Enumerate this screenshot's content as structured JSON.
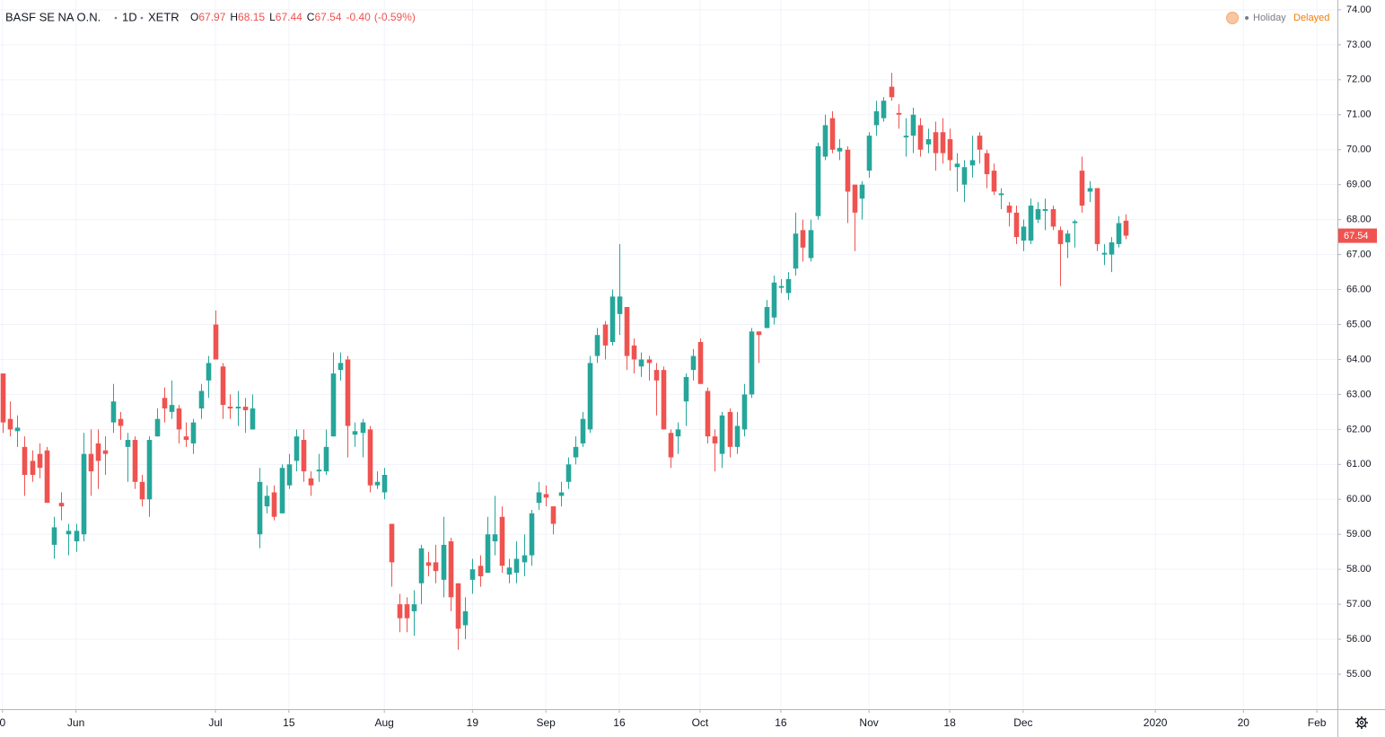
{
  "chart_data": {
    "type": "candlestick",
    "legend": {
      "symbol": "BASF SE NA O.N.",
      "interval": "1D",
      "exchange": "XETR",
      "ohlc": [
        {
          "key": "O",
          "value": "67.97"
        },
        {
          "key": "H",
          "value": "68.15"
        },
        {
          "key": "L",
          "value": "67.44"
        },
        {
          "key": "C",
          "value": "67.54"
        }
      ],
      "change": "-0.40",
      "change_pct": "(-0.59%)"
    },
    "status": {
      "holiday": "Holiday",
      "delayed": "Delayed"
    },
    "up_color": "#26a69a",
    "down_color": "#ef5350",
    "grid": true,
    "candles": {
      "open": [
        63.6,
        62.3,
        61.95,
        61.5,
        61.1,
        61.3,
        61.4,
        58.7,
        59.9,
        59.0,
        58.8,
        59.0,
        61.3,
        61.6,
        61.4,
        62.2,
        62.3,
        61.5,
        61.7,
        60.5,
        60.0,
        61.8,
        62.9,
        62.5,
        62.6,
        61.8,
        61.6,
        62.6,
        63.4,
        65.0,
        63.8,
        62.65,
        62.6,
        62.65,
        62.0,
        59.0,
        59.8,
        60.2,
        59.6,
        60.4,
        61.1,
        61.7,
        60.6,
        60.8,
        60.8,
        61.8,
        63.7,
        64.0,
        61.85,
        61.9,
        62.0,
        60.4,
        60.2,
        59.3,
        57.0,
        57.0,
        56.8,
        57.6,
        58.2,
        58.2,
        57.7,
        58.8,
        57.6,
        56.4,
        57.7,
        58.1,
        57.9,
        58.8,
        59.5,
        57.85,
        57.9,
        58.2,
        58.4,
        59.9,
        60.15,
        59.8,
        60.1,
        60.5,
        61.2,
        61.6,
        62.0,
        64.1,
        65.0,
        64.5,
        65.3,
        65.5,
        64.4,
        63.8,
        64.0,
        63.7,
        63.7,
        61.9,
        61.8,
        62.8,
        63.7,
        64.5,
        63.1,
        61.8,
        61.3,
        62.5,
        61.5,
        62.0,
        63.0,
        64.8,
        64.9,
        65.2,
        66.05,
        65.9,
        66.6,
        67.7,
        66.9,
        68.1,
        69.8,
        70.9,
        69.95,
        70.0,
        69.0,
        68.6,
        69.4,
        70.7,
        70.9,
        71.8,
        71.05,
        70.35,
        70.4,
        70.7,
        70.15,
        70.5,
        70.5,
        70.3,
        69.5,
        69.0,
        69.55,
        70.4,
        69.9,
        69.4,
        68.7,
        68.4,
        68.2,
        67.4,
        67.4,
        68.0,
        68.25,
        68.3,
        67.7,
        67.35,
        67.9,
        69.4,
        68.8,
        68.9,
        67.0,
        67.0,
        67.3,
        67.97
      ],
      "high": [
        63.6,
        62.8,
        62.4,
        61.8,
        61.4,
        61.6,
        61.5,
        59.5,
        60.2,
        59.3,
        59.3,
        61.9,
        62.0,
        62.0,
        61.8,
        63.3,
        62.5,
        61.9,
        61.8,
        60.7,
        61.8,
        62.6,
        63.2,
        63.4,
        62.7,
        62.2,
        62.3,
        63.3,
        64.1,
        65.4,
        63.9,
        63.0,
        63.1,
        62.9,
        63.0,
        60.9,
        60.4,
        60.4,
        61.0,
        61.3,
        62.0,
        62.0,
        60.8,
        61.3,
        62.0,
        64.2,
        64.2,
        64.1,
        62.2,
        62.3,
        62.1,
        60.8,
        60.9,
        59.3,
        57.3,
        57.2,
        57.4,
        58.7,
        58.5,
        58.7,
        59.5,
        58.9,
        57.6,
        57.2,
        58.3,
        58.4,
        59.5,
        60.1,
        59.8,
        58.3,
        58.8,
        59.0,
        59.7,
        60.5,
        60.4,
        59.8,
        60.5,
        61.2,
        61.8,
        62.5,
        64.1,
        64.9,
        65.1,
        66.0,
        67.3,
        65.5,
        64.6,
        64.2,
        64.1,
        63.9,
        63.8,
        62.0,
        62.2,
        63.6,
        64.3,
        64.6,
        63.2,
        62.0,
        62.5,
        62.6,
        62.5,
        63.3,
        64.9,
        64.8,
        65.7,
        66.4,
        66.3,
        66.5,
        68.2,
        68.0,
        68.0,
        70.2,
        71.0,
        71.1,
        70.3,
        70.1,
        69.0,
        69.1,
        70.5,
        71.4,
        71.5,
        72.2,
        71.3,
        70.9,
        71.2,
        70.9,
        70.6,
        70.8,
        70.9,
        70.6,
        69.9,
        69.7,
        70.4,
        70.5,
        70.0,
        69.6,
        68.9,
        68.5,
        68.4,
        68.0,
        68.6,
        68.5,
        68.6,
        68.4,
        67.8,
        67.7,
        68.0,
        69.8,
        69.1,
        68.9,
        67.3,
        67.5,
        68.1,
        68.15
      ],
      "low": [
        61.9,
        61.8,
        61.5,
        60.1,
        60.5,
        60.6,
        59.9,
        58.3,
        59.4,
        58.4,
        58.5,
        58.8,
        60.1,
        60.3,
        60.7,
        61.9,
        61.7,
        60.5,
        60.3,
        59.8,
        59.5,
        61.8,
        62.2,
        62.3,
        61.6,
        61.5,
        61.3,
        62.3,
        62.9,
        64.0,
        62.3,
        62.3,
        62.1,
        61.9,
        62.0,
        58.6,
        59.6,
        59.4,
        59.6,
        60.3,
        60.8,
        60.5,
        60.1,
        60.5,
        60.7,
        61.8,
        63.4,
        61.2,
        61.5,
        61.2,
        60.2,
        60.3,
        60.0,
        57.5,
        56.2,
        56.2,
        56.1,
        57.0,
        57.8,
        57.6,
        57.2,
        56.8,
        55.7,
        56.0,
        57.3,
        57.5,
        57.9,
        58.4,
        57.9,
        57.6,
        57.6,
        57.8,
        58.1,
        59.7,
        59.8,
        59.0,
        59.8,
        60.3,
        61.0,
        61.5,
        61.9,
        63.9,
        64.0,
        64.4,
        64.7,
        63.7,
        63.6,
        63.5,
        63.4,
        62.4,
        62.0,
        60.9,
        61.3,
        62.1,
        63.4,
        63.3,
        61.6,
        60.8,
        60.9,
        61.2,
        61.3,
        61.8,
        62.9,
        63.9,
        64.9,
        65.0,
        65.9,
        65.7,
        66.4,
        66.8,
        66.8,
        68.0,
        69.7,
        69.9,
        69.7,
        67.9,
        67.1,
        68.0,
        69.2,
        70.4,
        70.8,
        71.4,
        70.6,
        69.8,
        69.9,
        69.8,
        69.9,
        69.4,
        69.6,
        69.4,
        68.8,
        68.5,
        69.2,
        69.6,
        68.9,
        68.7,
        68.3,
        67.8,
        67.3,
        67.1,
        67.3,
        67.9,
        67.7,
        67.7,
        66.1,
        66.9,
        67.2,
        68.2,
        68.5,
        67.1,
        66.7,
        66.5,
        67.2,
        67.44
      ],
      "close": [
        62.2,
        62.0,
        62.05,
        60.7,
        60.7,
        60.9,
        59.9,
        59.2,
        59.8,
        59.1,
        59.1,
        61.3,
        60.8,
        61.1,
        61.3,
        62.8,
        62.1,
        61.7,
        60.5,
        60.0,
        61.7,
        62.3,
        62.6,
        62.7,
        62.0,
        61.7,
        62.2,
        63.1,
        63.9,
        64.0,
        62.7,
        62.6,
        62.65,
        62.55,
        62.6,
        60.5,
        60.1,
        59.5,
        60.9,
        61.0,
        61.8,
        60.8,
        60.4,
        60.85,
        61.5,
        63.6,
        63.9,
        62.1,
        61.95,
        62.2,
        60.4,
        60.5,
        60.7,
        58.2,
        56.6,
        56.6,
        57.0,
        58.6,
        58.1,
        57.95,
        58.7,
        57.2,
        56.3,
        56.8,
        58.0,
        57.8,
        59.0,
        59.0,
        58.1,
        58.05,
        58.3,
        58.4,
        59.6,
        60.2,
        60.05,
        59.3,
        60.2,
        61.0,
        61.5,
        62.3,
        63.9,
        64.7,
        64.4,
        65.8,
        65.8,
        64.1,
        64.0,
        64.0,
        63.9,
        63.4,
        62.0,
        61.2,
        62.0,
        63.5,
        64.1,
        63.3,
        61.8,
        61.6,
        62.4,
        61.5,
        62.1,
        63.0,
        64.8,
        64.7,
        65.5,
        66.2,
        66.1,
        66.3,
        67.6,
        67.2,
        67.7,
        70.1,
        70.7,
        70.0,
        70.05,
        68.8,
        68.2,
        69.0,
        70.4,
        71.1,
        71.4,
        71.5,
        71.0,
        70.4,
        71.0,
        70.0,
        70.3,
        69.9,
        69.9,
        69.7,
        69.6,
        69.5,
        69.7,
        70.0,
        69.3,
        68.8,
        68.75,
        68.2,
        67.5,
        67.8,
        68.4,
        68.3,
        68.3,
        67.8,
        67.3,
        67.6,
        67.95,
        68.4,
        68.9,
        67.3,
        67.05,
        67.35,
        67.9,
        67.54
      ]
    },
    "xlim": [
      -0.342,
      181.8
    ],
    "xticks": [
      {
        "value": 0,
        "label": "0"
      },
      {
        "value": 10,
        "label": "Jun"
      },
      {
        "value": 29,
        "label": "Jul"
      },
      {
        "value": 39,
        "label": "15"
      },
      {
        "value": 52,
        "label": "Aug"
      },
      {
        "value": 64,
        "label": "19"
      },
      {
        "value": 74,
        "label": "Sep"
      },
      {
        "value": 84,
        "label": "16"
      },
      {
        "value": 95,
        "label": "Oct"
      },
      {
        "value": 106,
        "label": "16"
      },
      {
        "value": 118,
        "label": "Nov"
      },
      {
        "value": 129,
        "label": "18"
      },
      {
        "value": 139,
        "label": "Dec"
      },
      {
        "value": 157,
        "label": "2020"
      },
      {
        "value": 169,
        "label": "20"
      },
      {
        "value": 179,
        "label": "Feb"
      }
    ],
    "ylim": [
      54.0,
      74.28
    ],
    "yticks": [
      {
        "value": 55,
        "label": "55.00"
      },
      {
        "value": 56,
        "label": "56.00"
      },
      {
        "value": 57,
        "label": "57.00"
      },
      {
        "value": 58,
        "label": "58.00"
      },
      {
        "value": 59,
        "label": "59.00"
      },
      {
        "value": 60,
        "label": "60.00"
      },
      {
        "value": 61,
        "label": "61.00"
      },
      {
        "value": 62,
        "label": "62.00"
      },
      {
        "value": 63,
        "label": "63.00"
      },
      {
        "value": 64,
        "label": "64.00"
      },
      {
        "value": 65,
        "label": "65.00"
      },
      {
        "value": 66,
        "label": "66.00"
      },
      {
        "value": 67,
        "label": "67.00"
      },
      {
        "value": 68,
        "label": "68.00"
      },
      {
        "value": 69,
        "label": "69.00"
      },
      {
        "value": 70,
        "label": "70.00"
      },
      {
        "value": 71,
        "label": "71.00"
      },
      {
        "value": 72,
        "label": "72.00"
      },
      {
        "value": 73,
        "label": "73.00"
      },
      {
        "value": 74,
        "label": "74.00"
      }
    ]
  }
}
